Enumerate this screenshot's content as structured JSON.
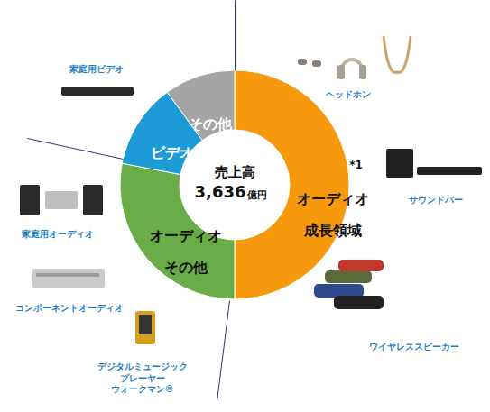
{
  "chart_data": {
    "type": "donut",
    "categories": [
      "オーディオ\n成長領域",
      "オーディオ\nその他",
      "ビデオ",
      "その他"
    ],
    "values": [
      50,
      28,
      12,
      10
    ],
    "colors": [
      "#f7990c",
      "#6aac48",
      "#1e9ad6",
      "#a5a5a5"
    ],
    "center_label": "売上高",
    "total": {
      "value": 3636,
      "label": "3,636",
      "unit": "億円"
    },
    "annotations": [
      "*1"
    ],
    "products": [
      {
        "label": "ヘッドホン",
        "category": 0
      },
      {
        "label": "サウンドバー",
        "category": 0
      },
      {
        "label": "ワイヤレススピーカー",
        "category": 0
      },
      {
        "label": "デジタルミュージック\nプレーヤー\nウォークマン®",
        "category": 1
      },
      {
        "label": "コンポーネントオーディオ",
        "category": 1
      },
      {
        "label": "家庭用オーディオ",
        "category": 1
      },
      {
        "label": "家庭用ビデオ",
        "category": 2
      }
    ]
  }
}
